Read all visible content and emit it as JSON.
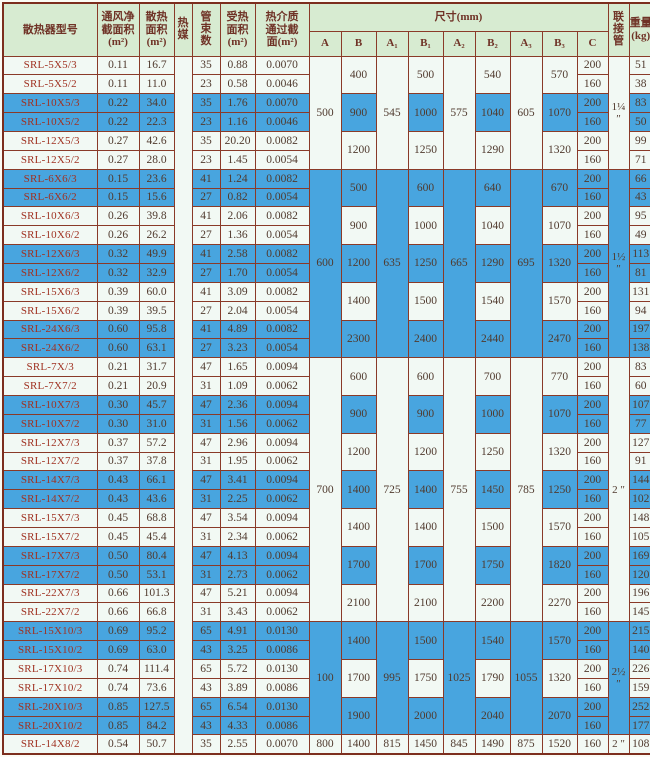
{
  "table": {
    "header": {
      "model": "散热器型号",
      "vent": "通风净\n截面积\n(m²)",
      "heat": "散热\n面积\n(m²)",
      "media": "热\n媒",
      "tubes": "管\n束\n数",
      "heated": "受热\n面积\n(m²)",
      "cross": "热介质\n通过截\n面(m²)",
      "dims": "尺寸(mm)",
      "sub": {
        "A": "A",
        "B": "B",
        "A1": "A₁",
        "B1": "B₁",
        "A2": "A₂",
        "B2": "B₂",
        "A3": "A₃",
        "B3": "B₃",
        "C": "C"
      },
      "pipe": "联\n接\n管",
      "weight": "重量\n(kg)"
    },
    "colors": {
      "row_blue": "#48a5df",
      "row_light": "#f2f9f4",
      "header_green": "#d7ebd1",
      "border_maroon": "#8a3a28",
      "model_text": "#a03222"
    },
    "sections": [
      {
        "A": "500",
        "A1": "545",
        "A2": "575",
        "A3": "605",
        "pipe": "1¼ ″",
        "groups": [
          {
            "shade": "light",
            "B": "400",
            "B1": "500",
            "B2": "540",
            "B3": "570",
            "rows": [
              {
                "model": "SRL-5X5/3",
                "vent": "0.11",
                "heat": "16.7",
                "tubes": "35",
                "heated": "0.88",
                "cross": "0.0070",
                "C": "200",
                "weight": "51"
              },
              {
                "model": "SRL-5X5/2",
                "vent": "0.11",
                "heat": "11.0",
                "tubes": "23",
                "heated": "0.58",
                "cross": "0.0046",
                "C": "160",
                "weight": "38"
              }
            ]
          },
          {
            "shade": "blue",
            "B": "900",
            "B1": "1000",
            "B2": "1040",
            "B3": "1070",
            "rows": [
              {
                "model": "SRL-10X5/3",
                "vent": "0.22",
                "heat": "34.0",
                "tubes": "35",
                "heated": "1.76",
                "cross": "0.0070",
                "C": "200",
                "weight": "83"
              },
              {
                "model": "SRL-10X5/2",
                "vent": "0.22",
                "heat": "22.3",
                "tubes": "23",
                "heated": "1.16",
                "cross": "0.0046",
                "C": "160",
                "weight": "50"
              }
            ]
          },
          {
            "shade": "light",
            "B": "1200",
            "B1": "1250",
            "B2": "1290",
            "B3": "1320",
            "rows": [
              {
                "model": "SRL-12X5/3",
                "vent": "0.27",
                "heat": "42.6",
                "tubes": "35",
                "heated": "20.20",
                "cross": "0.0082",
                "C": "200",
                "weight": "99"
              },
              {
                "model": "SRL-12X5/2",
                "vent": "0.27",
                "heat": "28.0",
                "tubes": "23",
                "heated": "1.45",
                "cross": "0.0054",
                "C": "160",
                "weight": "71"
              }
            ]
          }
        ]
      },
      {
        "A": "600",
        "A1": "635",
        "A2": "665",
        "A3": "695",
        "pipe": "1½ ″",
        "groups": [
          {
            "shade": "blue",
            "B": "500",
            "B1": "600",
            "B2": "640",
            "B3": "670",
            "rows": [
              {
                "model": "SRL-6X6/3",
                "vent": "0.15",
                "heat": "23.6",
                "tubes": "41",
                "heated": "1.24",
                "cross": "0.0082",
                "C": "200",
                "weight": "66"
              },
              {
                "model": "SRL-6X6/2",
                "vent": "0.15",
                "heat": "15.6",
                "tubes": "27",
                "heated": "0.82",
                "cross": "0.0054",
                "C": "160",
                "weight": "43"
              }
            ]
          },
          {
            "shade": "light",
            "B": "900",
            "B1": "1000",
            "B2": "1040",
            "B3": "1070",
            "rows": [
              {
                "model": "SRL-10X6/3",
                "vent": "0.26",
                "heat": "39.8",
                "tubes": "41",
                "heated": "2.06",
                "cross": "0.0082",
                "C": "200",
                "weight": "95"
              },
              {
                "model": "SRL-10X6/2",
                "vent": "0.26",
                "heat": "26.2",
                "tubes": "27",
                "heated": "1.36",
                "cross": "0.0054",
                "C": "160",
                "weight": "49"
              }
            ]
          },
          {
            "shade": "blue",
            "B": "1200",
            "B1": "1250",
            "B2": "1290",
            "B3": "1320",
            "rows": [
              {
                "model": "SRL-12X6/3",
                "vent": "0.32",
                "heat": "49.9",
                "tubes": "41",
                "heated": "2.58",
                "cross": "0.0082",
                "C": "200",
                "weight": "113"
              },
              {
                "model": "SRL-12X6/2",
                "vent": "0.32",
                "heat": "32.9",
                "tubes": "27",
                "heated": "1.70",
                "cross": "0.0054",
                "C": "160",
                "weight": "81"
              }
            ]
          },
          {
            "shade": "light",
            "B": "1400",
            "B1": "1500",
            "B2": "1540",
            "B3": "1570",
            "rows": [
              {
                "model": "SRL-15X6/3",
                "vent": "0.39",
                "heat": "60.0",
                "tubes": "41",
                "heated": "3.09",
                "cross": "0.0082",
                "C": "200",
                "weight": "131"
              },
              {
                "model": "SRL-15X6/2",
                "vent": "0.39",
                "heat": "39.5",
                "tubes": "27",
                "heated": "2.04",
                "cross": "0.0054",
                "C": "160",
                "weight": "94"
              }
            ]
          },
          {
            "shade": "blue",
            "B": "2300",
            "B1": "2400",
            "B2": "2440",
            "B3": "2470",
            "rows": [
              {
                "model": "SRL-24X6/3",
                "vent": "0.60",
                "heat": "95.8",
                "tubes": "41",
                "heated": "4.89",
                "cross": "0.0082",
                "C": "200",
                "weight": "197"
              },
              {
                "model": "SRL-24X6/2",
                "vent": "0.60",
                "heat": "63.1",
                "tubes": "27",
                "heated": "3.23",
                "cross": "0.0054",
                "C": "160",
                "weight": "138"
              }
            ]
          }
        ]
      },
      {
        "A": "700",
        "A1": "725",
        "A2": "755",
        "A3": "785",
        "pipe": "2 ″",
        "groups": [
          {
            "shade": "light",
            "B": "600",
            "B1": "600",
            "B2": "700",
            "B3": "770",
            "rows": [
              {
                "model": "SRL-7X/3",
                "vent": "0.21",
                "heat": "31.7",
                "tubes": "47",
                "heated": "1.65",
                "cross": "0.0094",
                "C": "200",
                "weight": "83"
              },
              {
                "model": "SRL-7X7/2",
                "vent": "0.21",
                "heat": "20.9",
                "tubes": "31",
                "heated": "1.09",
                "cross": "0.0062",
                "C": "160",
                "weight": "60"
              }
            ]
          },
          {
            "shade": "blue",
            "B": "900",
            "B1": "900",
            "B2": "1000",
            "B3": "1070",
            "rows": [
              {
                "model": "SRL-10X7/3",
                "vent": "0.30",
                "heat": "45.7",
                "tubes": "47",
                "heated": "2.36",
                "cross": "0.0094",
                "C": "200",
                "weight": "107"
              },
              {
                "model": "SRL-10X7/2",
                "vent": "0.30",
                "heat": "31.0",
                "tubes": "31",
                "heated": "1.56",
                "cross": "0.0062",
                "C": "160",
                "weight": "77"
              }
            ]
          },
          {
            "shade": "light",
            "B": "1200",
            "B1": "1200",
            "B2": "1250",
            "B3": "1320",
            "rows": [
              {
                "model": "SRL-12X7/3",
                "vent": "0.37",
                "heat": "57.2",
                "tubes": "47",
                "heated": "2.96",
                "cross": "0.0094",
                "C": "200",
                "weight": "127"
              },
              {
                "model": "SRL-12X7/2",
                "vent": "0.37",
                "heat": "37.8",
                "tubes": "31",
                "heated": "1.95",
                "cross": "0.0062",
                "C": "160",
                "weight": "91"
              }
            ]
          },
          {
            "shade": "blue",
            "B": "1400",
            "B1": "1400",
            "B2": "1450",
            "B3": "1250",
            "rows": [
              {
                "model": "SRL-14X7/3",
                "vent": "0.43",
                "heat": "66.1",
                "tubes": "47",
                "heated": "3.41",
                "cross": "0.0094",
                "C": "200",
                "weight": "144"
              },
              {
                "model": "SRL-14X7/2",
                "vent": "0.43",
                "heat": "43.6",
                "tubes": "31",
                "heated": "2.25",
                "cross": "0.0062",
                "C": "160",
                "weight": "102"
              }
            ]
          },
          {
            "shade": "light",
            "B": "1400",
            "B1": "1400",
            "B2": "1500",
            "B3": "1570",
            "rows": [
              {
                "model": "SRL-15X7/3",
                "vent": "0.45",
                "heat": "68.8",
                "tubes": "47",
                "heated": "3.54",
                "cross": "0.0094",
                "C": "200",
                "weight": "148"
              },
              {
                "model": "SRL-15X7/2",
                "vent": "0.45",
                "heat": "45.4",
                "tubes": "31",
                "heated": "2.34",
                "cross": "0.0062",
                "C": "160",
                "weight": "105"
              }
            ]
          },
          {
            "shade": "blue",
            "B": "1700",
            "B1": "1700",
            "B2": "1750",
            "B3": "1820",
            "rows": [
              {
                "model": "SRL-17X7/3",
                "vent": "0.50",
                "heat": "80.4",
                "tubes": "47",
                "heated": "4.13",
                "cross": "0.0094",
                "C": "200",
                "weight": "169"
              },
              {
                "model": "SRL-17X7/2",
                "vent": "0.50",
                "heat": "53.1",
                "tubes": "31",
                "heated": "2.73",
                "cross": "0.0062",
                "C": "160",
                "weight": "120"
              }
            ]
          },
          {
            "shade": "light",
            "B": "2100",
            "B1": "2100",
            "B2": "2200",
            "B3": "2270",
            "rows": [
              {
                "model": "SRL-22X7/3",
                "vent": "0.66",
                "heat": "101.3",
                "tubes": "47",
                "heated": "5.21",
                "cross": "0.0094",
                "C": "200",
                "weight": "196"
              },
              {
                "model": "SRL-22X7/2",
                "vent": "0.66",
                "heat": "66.8",
                "tubes": "31",
                "heated": "3.43",
                "cross": "0.0062",
                "C": "160",
                "weight": "145"
              }
            ]
          }
        ]
      },
      {
        "A": "100",
        "A1": "995",
        "A2": "1025",
        "A3": "1055",
        "pipe": "2½ ″",
        "groups": [
          {
            "shade": "blue",
            "B": "1400",
            "B1": "1500",
            "B2": "1540",
            "B3": "1570",
            "rows": [
              {
                "model": "SRL-15X10/3",
                "vent": "0.69",
                "heat": "95.2",
                "tubes": "65",
                "heated": "4.91",
                "cross": "0.0130",
                "C": "200",
                "weight": "215"
              },
              {
                "model": "SRL-15X10/2",
                "vent": "0.69",
                "heat": "63.0",
                "tubes": "43",
                "heated": "3.25",
                "cross": "0.0086",
                "C": "160",
                "weight": "140"
              }
            ]
          },
          {
            "shade": "light",
            "B": "1700",
            "B1": "1750",
            "B2": "1790",
            "B3": "1320",
            "rows": [
              {
                "model": "SRL-17X10/3",
                "vent": "0.74",
                "heat": "111.4",
                "tubes": "65",
                "heated": "5.72",
                "cross": "0.0130",
                "C": "200",
                "weight": "226"
              },
              {
                "model": "SRL-17X10/2",
                "vent": "0.74",
                "heat": "73.6",
                "tubes": "43",
                "heated": "3.89",
                "cross": "0.0086",
                "C": "160",
                "weight": "159"
              }
            ]
          },
          {
            "shade": "blue",
            "B": "1900",
            "B1": "2000",
            "B2": "2040",
            "B3": "2070",
            "rows": [
              {
                "model": "SRL-20X10/3",
                "vent": "0.85",
                "heat": "127.5",
                "tubes": "65",
                "heated": "6.54",
                "cross": "0.0130",
                "C": "200",
                "weight": "252"
              },
              {
                "model": "SRL-20X10/2",
                "vent": "0.85",
                "heat": "84.2",
                "tubes": "43",
                "heated": "4.33",
                "cross": "0.0086",
                "C": "160",
                "weight": "177"
              }
            ]
          }
        ]
      },
      {
        "A": "800",
        "A1": "815",
        "A2": "845",
        "A3": "875",
        "pipe": "2 ″",
        "groups": [
          {
            "shade": "light",
            "B": "1400",
            "B1": "1450",
            "B2": "1490",
            "B3": "1520",
            "rows": [
              {
                "model": "SRL-14X8/2",
                "vent": "0.54",
                "heat": "50.7",
                "tubes": "35",
                "heated": "2.55",
                "cross": "0.0070",
                "C": "160",
                "weight": "108"
              }
            ]
          }
        ]
      }
    ]
  }
}
